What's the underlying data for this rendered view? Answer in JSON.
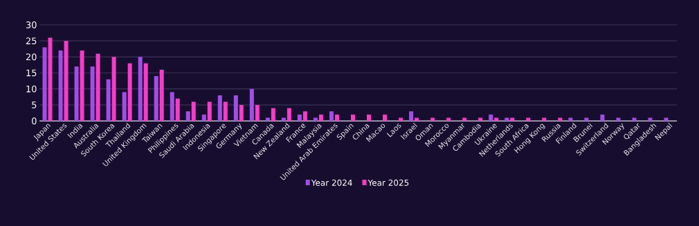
{
  "chart_data": {
    "type": "bar",
    "categories": [
      "Japan",
      "United States",
      "India",
      "Australia",
      "South Korea",
      "Thailand",
      "United Kingdom",
      "Taiwan",
      "Philippines",
      "Saudi Arabia",
      "Indonesia",
      "Singapore",
      "Germany",
      "Vietnam",
      "Canada",
      "New Zealand",
      "France",
      "Malaysia",
      "United Arab Emirates",
      "Spain",
      "China",
      "Macao",
      "Laos",
      "Israel",
      "Oman",
      "Morocco",
      "Myanmar",
      "Cambodia",
      "Ukraine",
      "Netherlands",
      "South Africa",
      "Hong Kong",
      "Russia",
      "Finland",
      "Brunei",
      "Switzerland",
      "Norway",
      "Qatar",
      "Bangladesh",
      "Nepal"
    ],
    "series": [
      {
        "name": "Year 2024",
        "color": "#a24ee6",
        "values": [
          23,
          22,
          17,
          17,
          13,
          9,
          20,
          14,
          9,
          3,
          2,
          8,
          8,
          10,
          1,
          1,
          2,
          1,
          3,
          0,
          0,
          0,
          0,
          3,
          0,
          0,
          0,
          0,
          2,
          1,
          0,
          0,
          0,
          1,
          1,
          2,
          1,
          1,
          1,
          1
        ]
      },
      {
        "name": "Year 2025",
        "color": "#f53cc8",
        "values": [
          26,
          25,
          22,
          21,
          20,
          18,
          18,
          16,
          7,
          6,
          6,
          6,
          5,
          5,
          4,
          4,
          3,
          2,
          2,
          2,
          2,
          2,
          1,
          1,
          1,
          1,
          1,
          1,
          1,
          1,
          1,
          1,
          1,
          0,
          0,
          0,
          0,
          0,
          0,
          0
        ]
      }
    ],
    "ylim": [
      0,
      30
    ],
    "yticks": [
      0,
      5,
      10,
      15,
      20,
      25,
      30
    ],
    "grid": "y",
    "legend": "bottom"
  }
}
